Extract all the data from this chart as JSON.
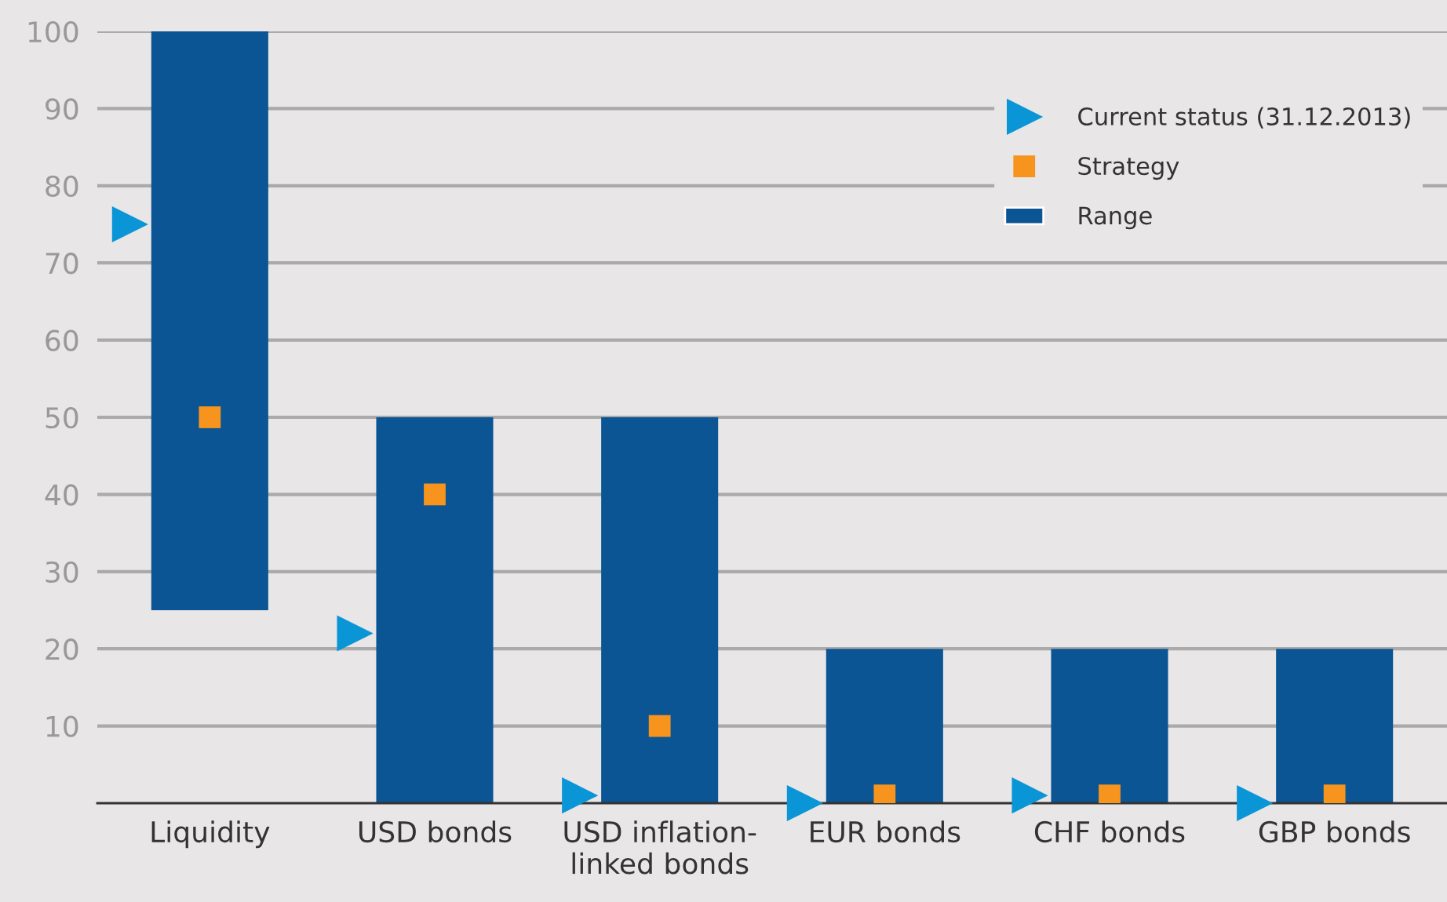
{
  "chart_data": {
    "type": "bar",
    "categories": [
      "Liquidity",
      "USD bonds",
      "USD inflation-\nlinked bonds",
      "EUR bonds",
      "CHF bonds",
      "GBP bonds"
    ],
    "series": [
      {
        "name": "Current status (31.12.2013)",
        "type": "scatter",
        "marker": "triangle",
        "color": "#0a96d6",
        "values": [
          75,
          22,
          1,
          0,
          1,
          0
        ]
      },
      {
        "name": "Strategy",
        "type": "scatter",
        "marker": "square",
        "color": "#f7941d",
        "values": [
          50,
          40,
          10,
          1,
          1,
          1
        ]
      },
      {
        "name": "Range",
        "type": "bar",
        "color": "#0b5594",
        "base": [
          25,
          0,
          0,
          0,
          0,
          0
        ],
        "values": [
          75,
          50,
          50,
          20,
          20,
          20
        ]
      }
    ],
    "ylim": [
      0,
      100
    ],
    "yticks": [
      10,
      20,
      30,
      40,
      50,
      60,
      70,
      80,
      90,
      100
    ],
    "grid": "y",
    "legend": "top right"
  }
}
